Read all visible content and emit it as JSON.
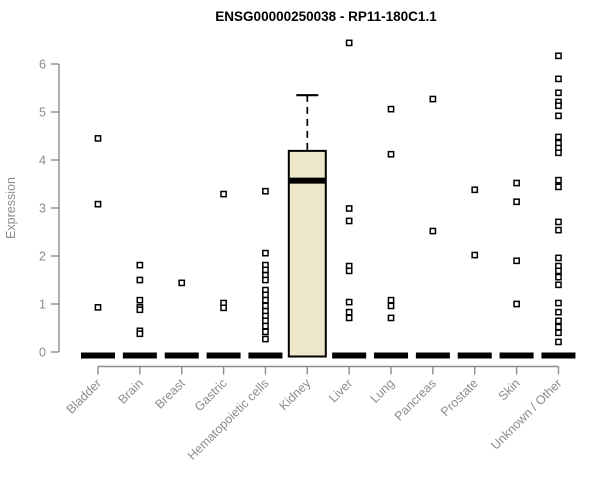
{
  "chart_data": {
    "type": "boxplot",
    "title": "ENSG00000250038 - RP11-180C1.1",
    "ylabel": "Expression",
    "ylim": [
      0,
      6.5
    ],
    "yticks": [
      0,
      1,
      2,
      3,
      4,
      5,
      6
    ],
    "grid": false,
    "legend": "none",
    "categories": [
      "Bladder",
      "Brain",
      "Breast",
      "Gastric",
      "Hematopoietic cells",
      "Kidney",
      "Liver",
      "Lung",
      "Pancreas",
      "Prostate",
      "Skin",
      "Unknown / Other"
    ],
    "boxes": [
      {
        "category": "Bladder",
        "median": 0,
        "q1": 0,
        "q3": 0,
        "whisker_low": 0,
        "whisker_high": 0
      },
      {
        "category": "Brain",
        "median": 0,
        "q1": 0,
        "q3": 0,
        "whisker_low": 0,
        "whisker_high": 0
      },
      {
        "category": "Breast",
        "median": 0,
        "q1": 0,
        "q3": 0,
        "whisker_low": 0,
        "whisker_high": 0
      },
      {
        "category": "Gastric",
        "median": 0,
        "q1": 0,
        "q3": 0,
        "whisker_low": 0,
        "whisker_high": 0
      },
      {
        "category": "Hematopoietic cells",
        "median": 0,
        "q1": 0,
        "q3": 0,
        "whisker_low": 0,
        "whisker_high": 0
      },
      {
        "category": "Kidney",
        "median": 3.57,
        "q1": 0,
        "q3": 4.19,
        "whisker_low": 0,
        "whisker_high": 5.35
      },
      {
        "category": "Liver",
        "median": 0,
        "q1": 0,
        "q3": 0,
        "whisker_low": 0,
        "whisker_high": 0
      },
      {
        "category": "Lung",
        "median": 0,
        "q1": 0,
        "q3": 0,
        "whisker_low": 0,
        "whisker_high": 0
      },
      {
        "category": "Pancreas",
        "median": 0,
        "q1": 0,
        "q3": 0,
        "whisker_low": 0,
        "whisker_high": 0
      },
      {
        "category": "Prostate",
        "median": 0,
        "q1": 0,
        "q3": 0,
        "whisker_low": 0,
        "whisker_high": 0
      },
      {
        "category": "Skin",
        "median": 0,
        "q1": 0,
        "q3": 0,
        "whisker_low": 0,
        "whisker_high": 0
      },
      {
        "category": "Unknown / Other",
        "median": 0,
        "q1": 0,
        "q3": 0,
        "whisker_low": 0,
        "whisker_high": 0
      }
    ],
    "points": [
      [
        4.45,
        3.08,
        0.93
      ],
      [
        1.81,
        1.5,
        1.08,
        0.93,
        0.88,
        0.44,
        0.38
      ],
      [
        1.44
      ],
      [
        3.29,
        1.02,
        0.92
      ],
      [
        3.35,
        2.06,
        1.81,
        1.71,
        1.6,
        1.5,
        1.29,
        1.19,
        1.08,
        0.96,
        0.85,
        0.75,
        0.65,
        0.54,
        0.42,
        0.27
      ],
      [],
      [
        6.44,
        2.99,
        2.73,
        1.79,
        1.69,
        1.04,
        0.83,
        0.71
      ],
      [
        5.06,
        4.12,
        1.08,
        0.96,
        0.71
      ],
      [
        5.27,
        2.52
      ],
      [
        3.38,
        2.02
      ],
      [
        3.52,
        3.13,
        1.9,
        1.0
      ],
      [
        6.17,
        5.69,
        5.4,
        5.21,
        5.13,
        4.92,
        4.48,
        4.35,
        4.25,
        4.15,
        3.58,
        3.44,
        2.71,
        2.54,
        1.96,
        1.79,
        1.69,
        1.56,
        1.4,
        1.02,
        0.83,
        0.65,
        0.52,
        0.4,
        0.21
      ]
    ],
    "colors": {
      "box_fill": "#EDE7CB",
      "box_stroke": "#000000",
      "median": "#000000",
      "zero_bar": "#000000",
      "point_fill": "#FFFFFF",
      "point_stroke": "#000000",
      "axis": "#8C8C8C",
      "tick_label": "#8C8C8C",
      "title": "#000000"
    }
  }
}
